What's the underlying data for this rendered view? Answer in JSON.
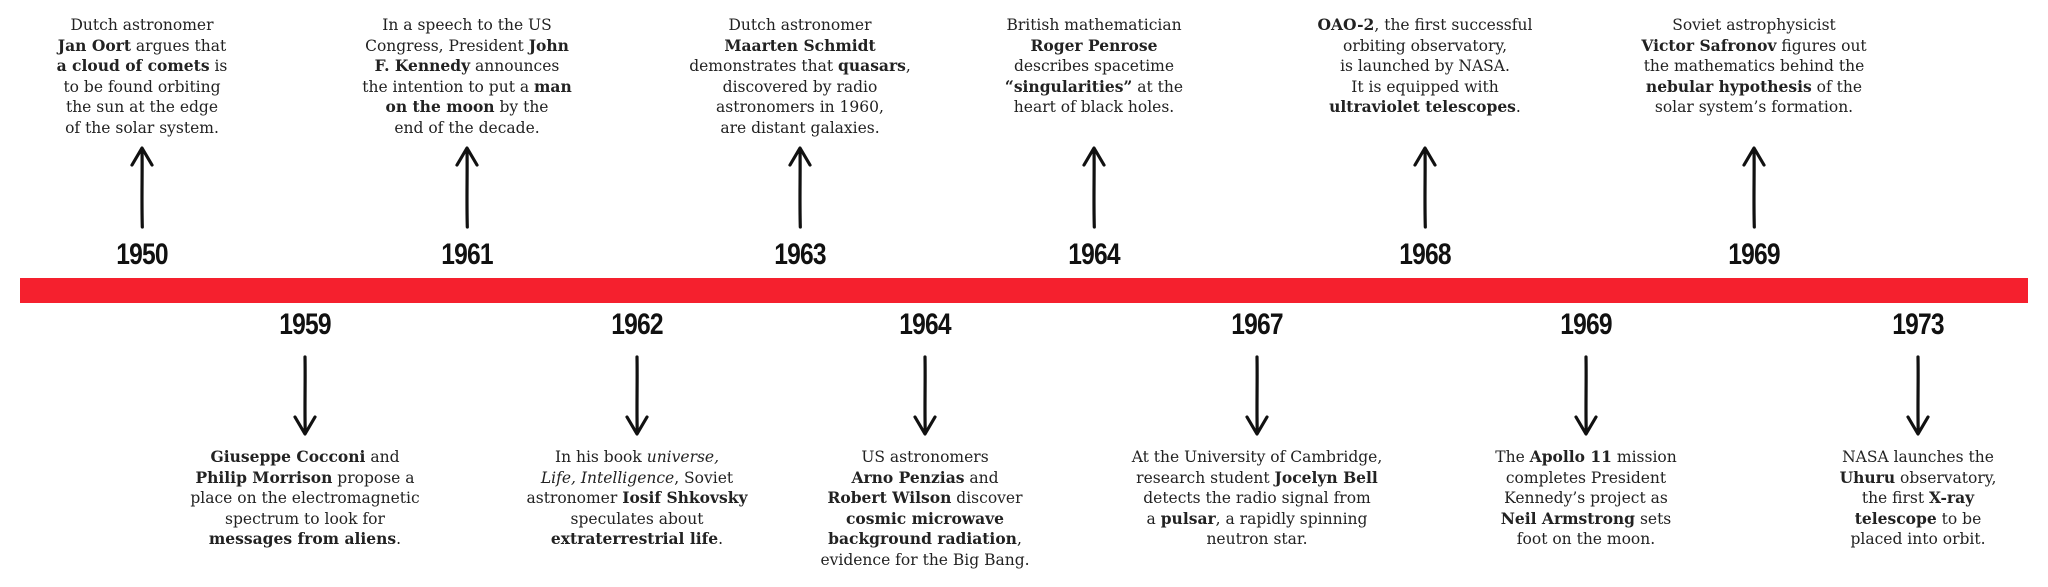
{
  "events_above": [
    {
      "year": "1950",
      "desc": [
        {
          "t": "Dutch astronomer"
        },
        {
          "br": true
        },
        {
          "t": "Jan Oort",
          "b": true
        },
        {
          "t": " argues that"
        },
        {
          "br": true
        },
        {
          "t": "a cloud of comets",
          "b": true
        },
        {
          "t": " is"
        },
        {
          "br": true
        },
        {
          "t": "to be found orbiting"
        },
        {
          "br": true
        },
        {
          "t": "the sun at the edge"
        },
        {
          "br": true
        },
        {
          "t": "of the solar system."
        }
      ]
    },
    {
      "year": "1961",
      "desc": [
        {
          "t": "In a speech to the US"
        },
        {
          "br": true
        },
        {
          "t": "Congress, President "
        },
        {
          "t": "John",
          "b": true
        },
        {
          "br": true
        },
        {
          "t": "F. Kennedy",
          "b": true
        },
        {
          "t": " announces"
        },
        {
          "br": true
        },
        {
          "t": "the intention to put a "
        },
        {
          "t": "man",
          "b": true
        },
        {
          "br": true
        },
        {
          "t": "on the moon",
          "b": true
        },
        {
          "t": " by the"
        },
        {
          "br": true
        },
        {
          "t": "end of the decade."
        }
      ]
    },
    {
      "year": "1963",
      "desc": [
        {
          "t": "Dutch astronomer"
        },
        {
          "br": true
        },
        {
          "t": "Maarten Schmidt",
          "b": true
        },
        {
          "br": true
        },
        {
          "t": "demonstrates that "
        },
        {
          "t": "quasars",
          "b": true
        },
        {
          "t": ","
        },
        {
          "br": true
        },
        {
          "t": "discovered by radio"
        },
        {
          "br": true
        },
        {
          "t": "astronomers in 1960,"
        },
        {
          "br": true
        },
        {
          "t": "are distant galaxies."
        }
      ]
    },
    {
      "year": "1964",
      "desc": [
        {
          "t": "British mathematician"
        },
        {
          "br": true
        },
        {
          "t": "Roger Penrose",
          "b": true
        },
        {
          "br": true
        },
        {
          "t": "describes spacetime"
        },
        {
          "br": true
        },
        {
          "t": "“singularities”",
          "b": true
        },
        {
          "t": " at the"
        },
        {
          "br": true
        },
        {
          "t": "heart of black holes."
        }
      ]
    },
    {
      "year": "1968",
      "desc": [
        {
          "t": "OAO-2",
          "b": true
        },
        {
          "t": ", the first successful"
        },
        {
          "br": true
        },
        {
          "t": "orbiting observatory,"
        },
        {
          "br": true
        },
        {
          "t": "is launched by NASA."
        },
        {
          "br": true
        },
        {
          "t": "It is equipped with"
        },
        {
          "br": true
        },
        {
          "t": "ultraviolet telescopes",
          "b": true
        },
        {
          "t": "."
        }
      ]
    },
    {
      "year": "1969",
      "desc": [
        {
          "t": "Soviet astrophysicist"
        },
        {
          "br": true
        },
        {
          "t": "Victor Safronov",
          "b": true
        },
        {
          "t": " figures out"
        },
        {
          "br": true
        },
        {
          "t": "the mathematics behind the"
        },
        {
          "br": true
        },
        {
          "t": "nebular hypothesis",
          "b": true
        },
        {
          "t": " of the"
        },
        {
          "br": true
        },
        {
          "t": "solar system’s formation."
        }
      ]
    }
  ],
  "events_below": [
    {
      "year": "1959",
      "desc": [
        {
          "t": "Giuseppe Cocconi",
          "b": true
        },
        {
          "t": " and"
        },
        {
          "br": true
        },
        {
          "t": "Philip Morrison",
          "b": true
        },
        {
          "t": " propose a"
        },
        {
          "br": true
        },
        {
          "t": "place on the electromagnetic"
        },
        {
          "br": true
        },
        {
          "t": "spectrum to look for"
        },
        {
          "br": true
        },
        {
          "t": "messages from aliens",
          "b": true
        },
        {
          "t": "."
        }
      ]
    },
    {
      "year": "1962",
      "desc": [
        {
          "t": "In his book "
        },
        {
          "t": "universe,",
          "i": true
        },
        {
          "br": true
        },
        {
          "t": "Life, Intelligence",
          "i": true
        },
        {
          "t": ", Soviet"
        },
        {
          "br": true
        },
        {
          "t": "astronomer "
        },
        {
          "t": "Iosif Shkovsky",
          "b": true
        },
        {
          "br": true
        },
        {
          "t": "speculates about"
        },
        {
          "br": true
        },
        {
          "t": "extraterrestrial life",
          "b": true
        },
        {
          "t": "."
        }
      ]
    },
    {
      "year": "1964",
      "desc": [
        {
          "t": "US astronomers"
        },
        {
          "br": true
        },
        {
          "t": "Arno Penzias",
          "b": true
        },
        {
          "t": " and"
        },
        {
          "br": true
        },
        {
          "t": "Robert Wilson",
          "b": true
        },
        {
          "t": " discover"
        },
        {
          "br": true
        },
        {
          "t": "cosmic microwave",
          "b": true
        },
        {
          "br": true
        },
        {
          "t": "background radiation",
          "b": true
        },
        {
          "t": ","
        },
        {
          "br": true
        },
        {
          "t": "evidence for the Big Bang."
        }
      ]
    },
    {
      "year": "1967",
      "desc": [
        {
          "t": "At the University of Cambridge,"
        },
        {
          "br": true
        },
        {
          "t": "research student "
        },
        {
          "t": "Jocelyn Bell",
          "b": true
        },
        {
          "br": true
        },
        {
          "t": "detects the radio signal from"
        },
        {
          "br": true
        },
        {
          "t": "a "
        },
        {
          "t": "pulsar",
          "b": true
        },
        {
          "t": ", a rapidly spinning"
        },
        {
          "br": true
        },
        {
          "t": "neutron star."
        }
      ]
    },
    {
      "year": "1969",
      "desc": [
        {
          "t": "The "
        },
        {
          "t": "Apollo 11",
          "b": true
        },
        {
          "t": " mission"
        },
        {
          "br": true
        },
        {
          "t": "completes President"
        },
        {
          "br": true
        },
        {
          "t": "Kennedy’s project as"
        },
        {
          "br": true
        },
        {
          "t": "Neil Armstrong",
          "b": true
        },
        {
          "t": " sets"
        },
        {
          "br": true
        },
        {
          "t": "foot on the moon."
        }
      ]
    },
    {
      "year": "1973",
      "desc": [
        {
          "t": "NASA launches the"
        },
        {
          "br": true
        },
        {
          "t": "Uhuru",
          "b": true
        },
        {
          "t": " observatory,"
        },
        {
          "br": true
        },
        {
          "t": "the first "
        },
        {
          "t": "X-ray",
          "b": true
        },
        {
          "br": true
        },
        {
          "t": "telescope",
          "b": true
        },
        {
          "t": " to be"
        },
        {
          "br": true
        },
        {
          "t": "placed into orbit."
        }
      ]
    }
  ],
  "colors": {
    "timeline_bar": "#f5202e",
    "text": "#222222",
    "arrow": "#111111"
  },
  "icons": {
    "above": "arrow-up-icon",
    "below": "arrow-down-icon"
  }
}
